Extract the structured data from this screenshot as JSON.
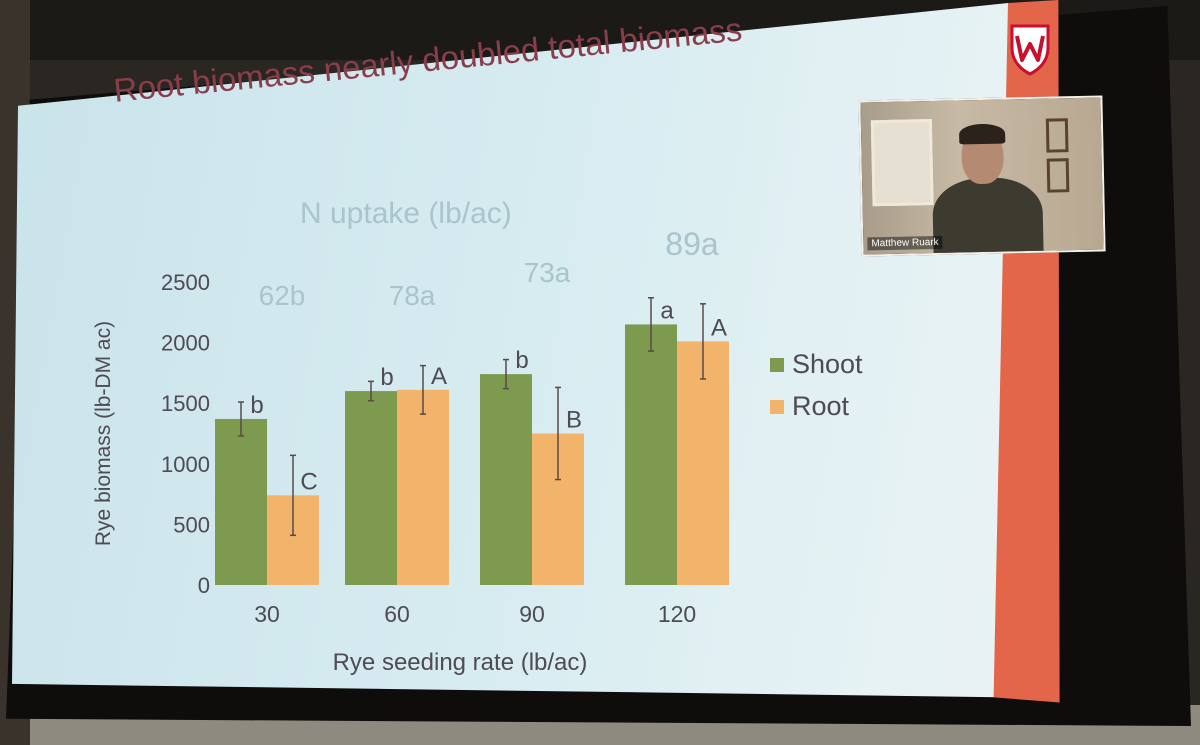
{
  "slide": {
    "title": "Root biomass nearly doubled total biomass"
  },
  "webcam": {
    "name": "Matthew Ruark"
  },
  "colors": {
    "shoot": "#7e9a4e",
    "root": "#f2b36a",
    "accent": "#e3654a",
    "title": "#8a3d4b",
    "axis_text": "#4f4a54",
    "uptake_text": "#a8c4cc"
  },
  "chart_data": {
    "type": "bar",
    "title": "",
    "xlabel": "Rye seeding rate (lb/ac)",
    "ylabel": "Rye biomass (lb-DM ac)",
    "ylim": [
      0,
      2500
    ],
    "yticks": [
      0,
      500,
      1000,
      1500,
      2000,
      2500
    ],
    "categories": [
      "30",
      "60",
      "90",
      "120"
    ],
    "series": [
      {
        "name": "Shoot",
        "values": [
          1370,
          1600,
          1740,
          2150
        ],
        "error": [
          140,
          80,
          120,
          220
        ],
        "letters": [
          "b",
          "b",
          "b",
          "a"
        ]
      },
      {
        "name": "Root",
        "values": [
          740,
          1610,
          1250,
          2010
        ],
        "error": [
          330,
          200,
          380,
          310
        ],
        "letters": [
          "C",
          "A",
          "B",
          "A"
        ]
      }
    ],
    "legend_position": "right",
    "annotation_title": "N uptake (lb/ac)",
    "annotations": [
      "62b",
      "78a",
      "73a",
      "89a"
    ]
  }
}
